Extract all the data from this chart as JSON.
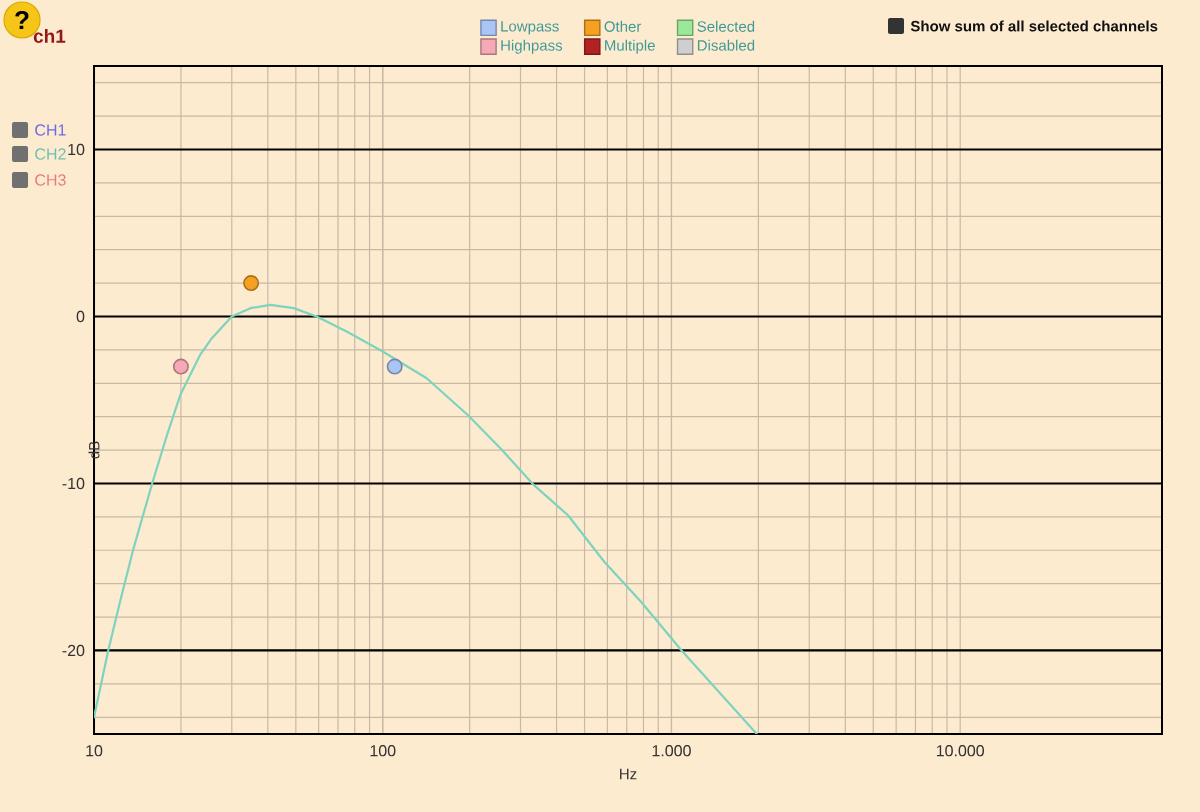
{
  "chart_data": {
    "type": "line",
    "title": "ch1",
    "xlabel": "Hz",
    "ylabel": "dB",
    "log": "x",
    "xlim": [
      10,
      50000
    ],
    "ylim": [
      -25,
      15
    ],
    "xticks": [
      10,
      100,
      {
        "value": 1000,
        "label": "1.000"
      },
      {
        "value": 10000,
        "label": "10.000"
      }
    ],
    "yticks": [
      -20,
      -10,
      0,
      10
    ],
    "grid": true,
    "legend": "top",
    "annotations": [
      "?",
      "CH1",
      "CH2",
      "CH3",
      "Show sum of all selected channels"
    ],
    "series": [
      {
        "type": "line",
        "color": "#7dd3be",
        "line_style": "solid",
        "x": [
          10,
          11.2,
          12.3,
          13.7,
          15.9,
          17.9,
          19.9,
          23.3,
          25.6,
          30,
          34.8,
          40.8,
          49.2,
          59,
          75,
          100,
          142,
          197,
          256,
          334,
          438,
          586,
          786,
          1084,
          1975
        ],
        "values": [
          -24.0,
          -20.0,
          -17.1,
          -13.9,
          -10.0,
          -7.1,
          -4.7,
          -2.3,
          -1.3,
          0,
          0.5,
          0.7,
          0.5,
          0,
          -0.9,
          -2.1,
          -3.7,
          -5.9,
          -7.9,
          -10.1,
          -11.9,
          -14.7,
          -17.1,
          -20.0,
          -25.0
        ]
      },
      {
        "type": "scatter",
        "name": "Lowpass",
        "color": "#a9c4f5",
        "marker": "circle",
        "x": [
          110
        ],
        "values": [
          -3
        ]
      },
      {
        "type": "scatter",
        "name": "Highpass",
        "color": "#f5a9b4",
        "marker": "circle",
        "x": [
          20
        ],
        "values": [
          -3
        ]
      },
      {
        "type": "scatter",
        "name": "Other",
        "color": "#f5a021",
        "marker": "circle",
        "x": [
          35
        ],
        "values": [
          2
        ]
      },
      {
        "type": "scatter",
        "name": "Multiple",
        "color": "#b22222"
      },
      {
        "type": "scatter",
        "name": "Selected",
        "color": "#9be89b"
      },
      {
        "type": "scatter",
        "name": "Disabled",
        "color": "#cfcfcf"
      }
    ]
  }
}
